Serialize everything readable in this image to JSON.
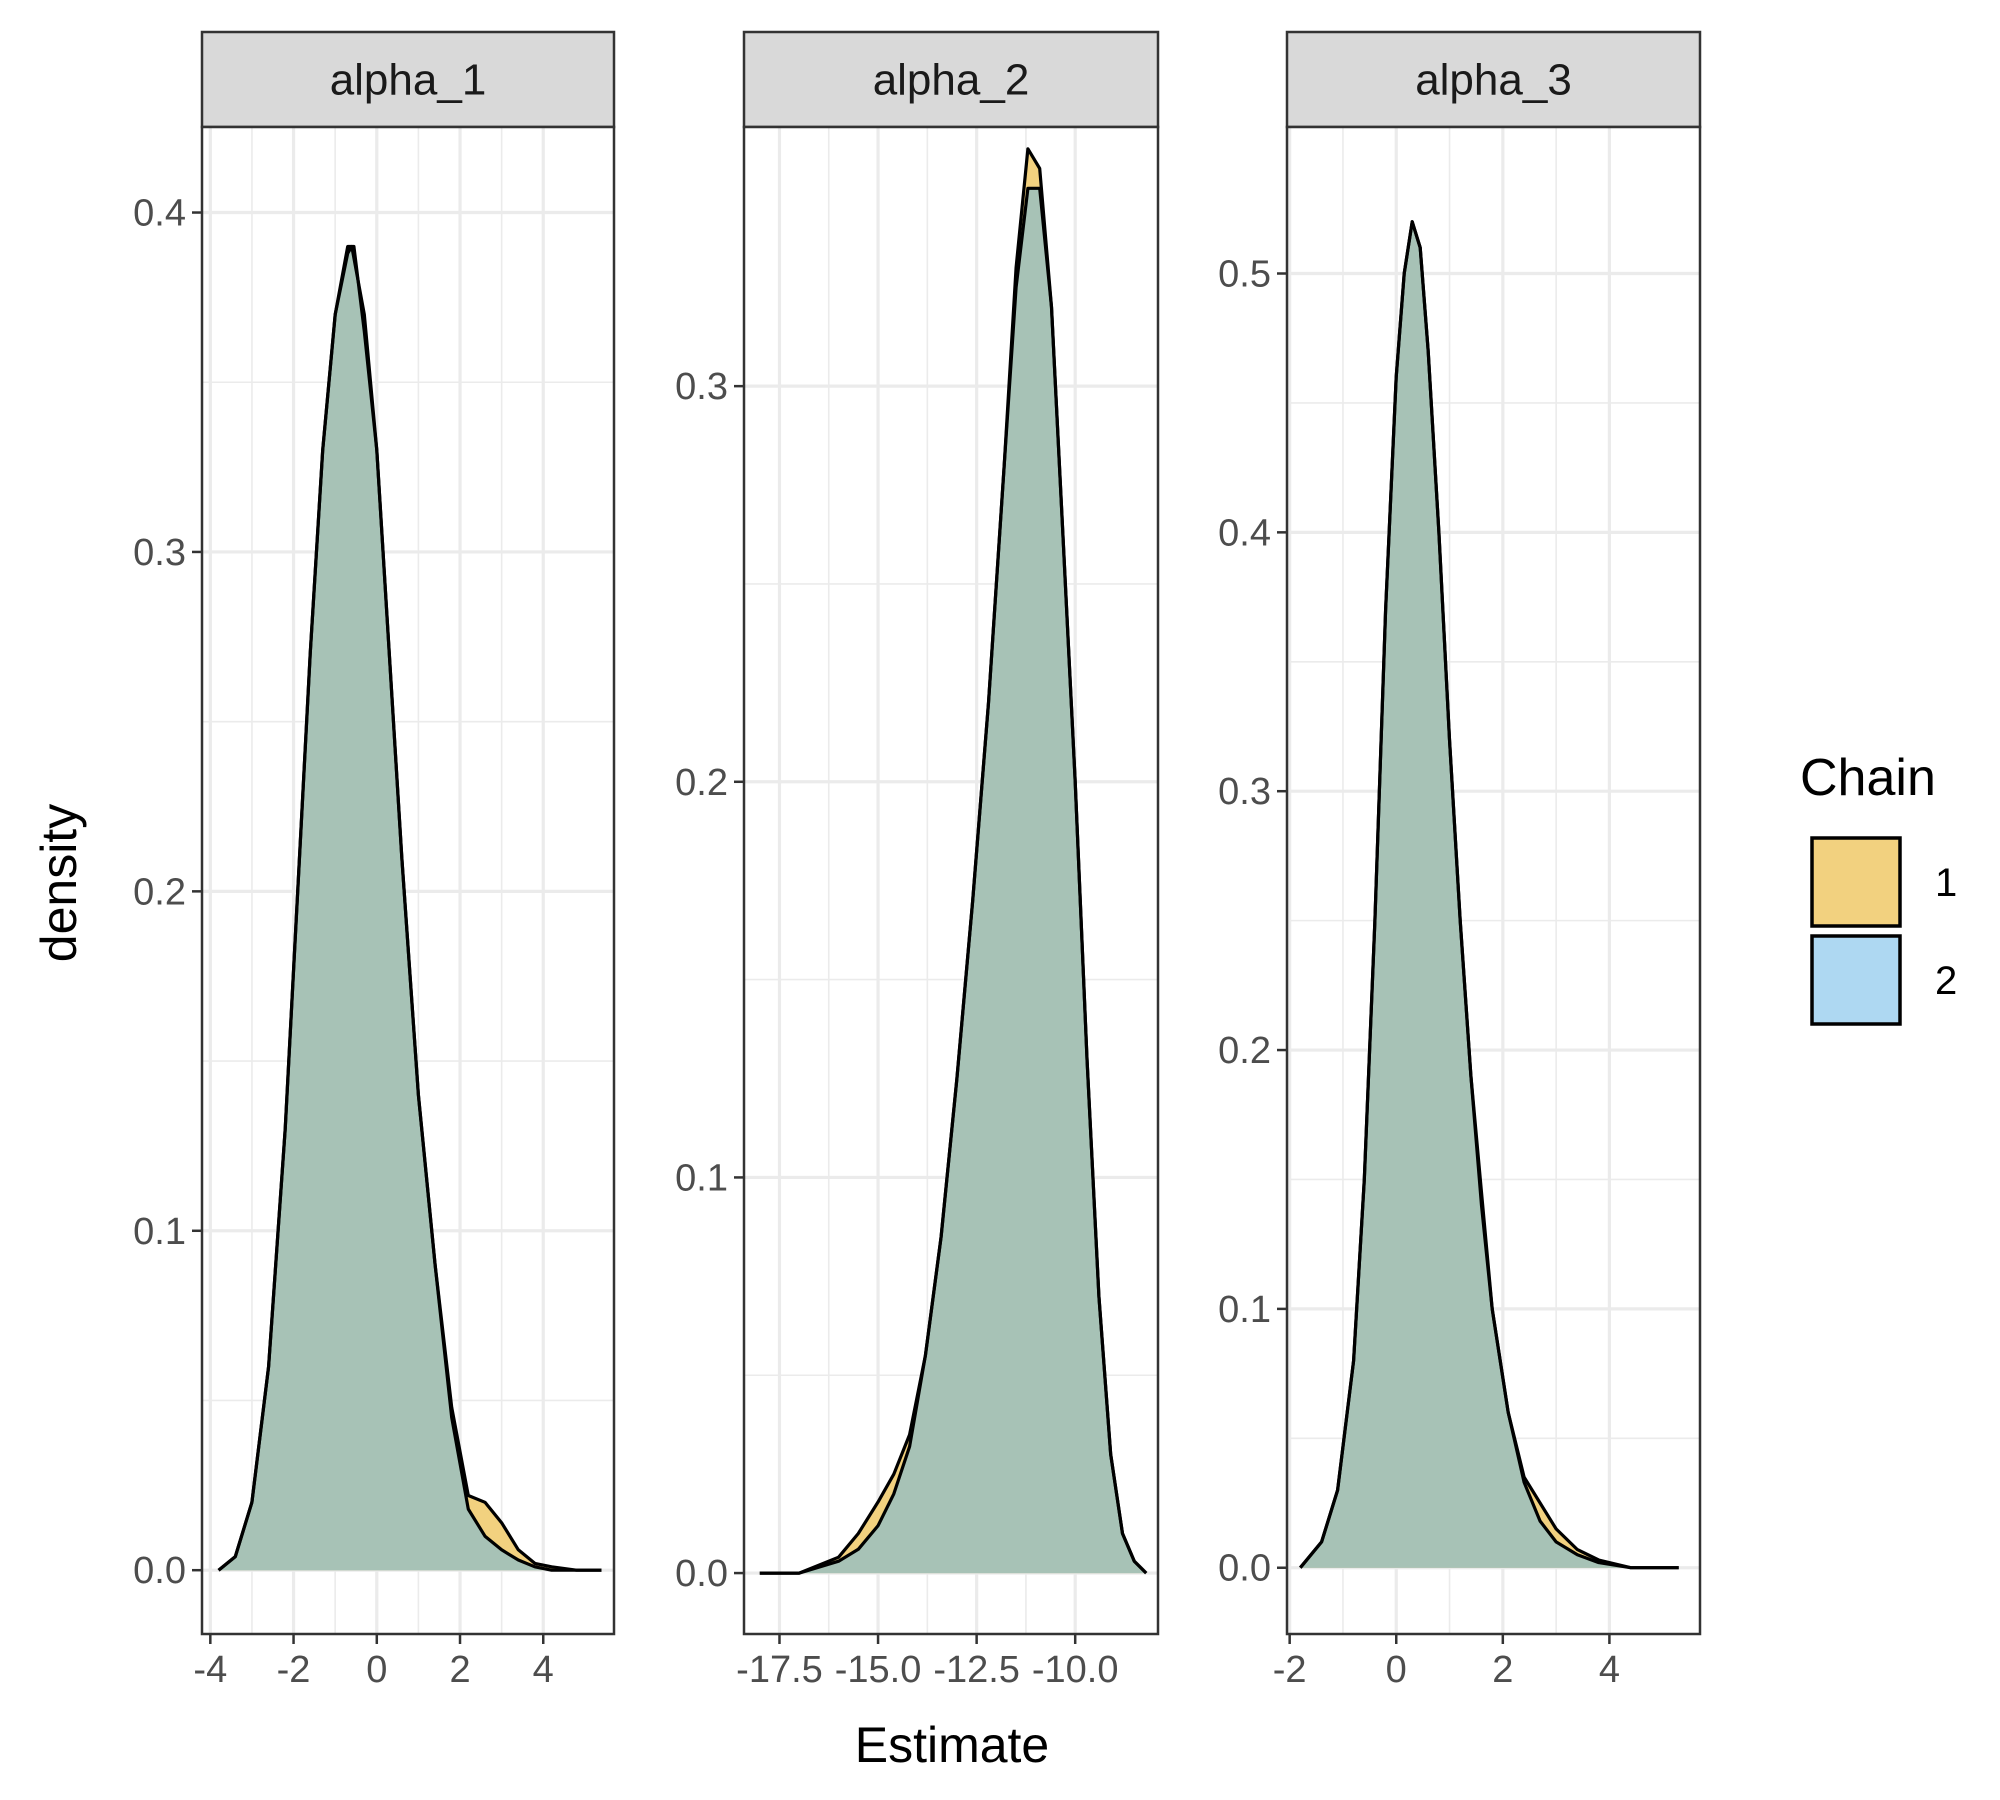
{
  "chart_data": {
    "type": "area",
    "xlabel": "Estimate",
    "ylabel": "density",
    "legend": {
      "title": "Chain",
      "position": "right",
      "entries": [
        {
          "label": "1",
          "color": "#F2D17F"
        },
        {
          "label": "2",
          "color": "#AED8F2"
        }
      ]
    },
    "colors": {
      "overlap_fill": "#A7C2B6",
      "outline": "#000000",
      "grid": "#EBEBEB",
      "strip_bg": "#D9D9D9",
      "panel_border": "#333333"
    },
    "grid": true,
    "panels": [
      {
        "strip": "alpha_1",
        "xlim": [
          -4.2,
          5.7
        ],
        "ylim": [
          -0.0188,
          0.4252
        ],
        "x_ticks": [
          -4,
          -2,
          0,
          2,
          4
        ],
        "x_tick_labels": [
          "-4",
          "-2",
          "0",
          "2",
          "4"
        ],
        "y_ticks": [
          0.0,
          0.1,
          0.2,
          0.3,
          0.4
        ],
        "y_tick_labels": [
          "0.0",
          "0.1",
          "0.2",
          "0.3",
          "0.4"
        ],
        "series": [
          {
            "name": "1",
            "x": [
              -3.8,
              -3.4,
              -3.0,
              -2.6,
              -2.2,
              -1.9,
              -1.6,
              -1.3,
              -1.0,
              -0.7,
              -0.55,
              -0.3,
              0.0,
              0.3,
              0.6,
              1.0,
              1.4,
              1.8,
              2.2,
              2.6,
              3.0,
              3.4,
              3.8,
              4.2,
              4.8,
              5.4
            ],
            "y": [
              0.0,
              0.004,
              0.02,
              0.06,
              0.13,
              0.2,
              0.27,
              0.33,
              0.37,
              0.39,
              0.39,
              0.365,
              0.33,
              0.27,
              0.21,
              0.14,
              0.09,
              0.048,
              0.022,
              0.02,
              0.014,
              0.006,
              0.002,
              0.001,
              0.0,
              0.0
            ]
          },
          {
            "name": "2",
            "x": [
              -3.8,
              -3.4,
              -3.0,
              -2.6,
              -2.2,
              -1.9,
              -1.6,
              -1.3,
              -1.0,
              -0.7,
              -0.6,
              -0.3,
              0.0,
              0.3,
              0.6,
              1.0,
              1.4,
              1.8,
              2.2,
              2.6,
              3.0,
              3.4,
              3.8,
              4.2,
              4.8,
              5.4
            ],
            "y": [
              0.0,
              0.004,
              0.02,
              0.06,
              0.13,
              0.2,
              0.27,
              0.33,
              0.37,
              0.388,
              0.39,
              0.37,
              0.33,
              0.27,
              0.21,
              0.14,
              0.09,
              0.045,
              0.018,
              0.01,
              0.006,
              0.003,
              0.001,
              0.0,
              0.0,
              0.0
            ]
          }
        ]
      },
      {
        "strip": "alpha_2",
        "xlim": [
          -18.4,
          -7.9
        ],
        "ylim": [
          -0.0154,
          0.3655
        ],
        "x_ticks": [
          -17.5,
          -15.0,
          -12.5,
          -10.0
        ],
        "x_tick_labels": [
          "-17.5",
          "-15.0",
          "-12.5",
          "-10.0"
        ],
        "y_ticks": [
          0.0,
          0.1,
          0.2,
          0.3
        ],
        "y_tick_labels": [
          "0.0",
          "0.1",
          "0.2",
          "0.3"
        ],
        "series": [
          {
            "name": "1",
            "x": [
              -18.0,
              -17.0,
              -16.0,
              -15.5,
              -15.0,
              -14.6,
              -14.2,
              -13.8,
              -13.4,
              -13.0,
              -12.6,
              -12.2,
              -11.8,
              -11.5,
              -11.2,
              -10.9,
              -10.6,
              -10.3,
              -10.0,
              -9.7,
              -9.4,
              -9.1,
              -8.8,
              -8.5,
              -8.2
            ],
            "y": [
              0.0,
              0.0,
              0.004,
              0.01,
              0.018,
              0.025,
              0.035,
              0.055,
              0.085,
              0.125,
              0.17,
              0.22,
              0.28,
              0.33,
              0.36,
              0.355,
              0.32,
              0.26,
              0.2,
              0.13,
              0.07,
              0.03,
              0.01,
              0.003,
              0.0
            ]
          },
          {
            "name": "2",
            "x": [
              -18.0,
              -17.0,
              -16.0,
              -15.5,
              -15.0,
              -14.6,
              -14.2,
              -13.8,
              -13.4,
              -13.0,
              -12.6,
              -12.2,
              -11.8,
              -11.5,
              -11.2,
              -10.9,
              -10.6,
              -10.3,
              -10.0,
              -9.7,
              -9.4,
              -9.1,
              -8.8,
              -8.5,
              -8.2
            ],
            "y": [
              0.0,
              0.0,
              0.003,
              0.006,
              0.012,
              0.02,
              0.032,
              0.055,
              0.085,
              0.125,
              0.17,
              0.22,
              0.28,
              0.325,
              0.35,
              0.35,
              0.32,
              0.26,
              0.2,
              0.13,
              0.07,
              0.03,
              0.01,
              0.003,
              0.0
            ]
          }
        ]
      },
      {
        "strip": "alpha_3",
        "xlim": [
          -2.05,
          5.7
        ],
        "ylim": [
          -0.0256,
          0.5566
        ],
        "x_ticks": [
          -2,
          0,
          2,
          4
        ],
        "x_tick_labels": [
          "-2",
          "0",
          "2",
          "4"
        ],
        "y_ticks": [
          0.0,
          0.1,
          0.2,
          0.3,
          0.4,
          0.5
        ],
        "y_tick_labels": [
          "0.0",
          "0.1",
          "0.2",
          "0.3",
          "0.4",
          "0.5"
        ],
        "series": [
          {
            "name": "1",
            "x": [
              -1.8,
              -1.4,
              -1.1,
              -0.8,
              -0.6,
              -0.4,
              -0.2,
              0.0,
              0.15,
              0.3,
              0.45,
              0.6,
              0.8,
              1.0,
              1.2,
              1.4,
              1.6,
              1.8,
              2.1,
              2.4,
              2.7,
              3.0,
              3.4,
              3.8,
              4.4,
              5.3
            ],
            "y": [
              0.0,
              0.01,
              0.03,
              0.08,
              0.15,
              0.25,
              0.37,
              0.46,
              0.5,
              0.52,
              0.51,
              0.47,
              0.4,
              0.32,
              0.25,
              0.19,
              0.14,
              0.1,
              0.06,
              0.035,
              0.025,
              0.015,
              0.007,
              0.003,
              0.0,
              0.0
            ]
          },
          {
            "name": "2",
            "x": [
              -1.8,
              -1.4,
              -1.1,
              -0.8,
              -0.6,
              -0.4,
              -0.2,
              0.0,
              0.15,
              0.3,
              0.45,
              0.6,
              0.8,
              1.0,
              1.2,
              1.4,
              1.6,
              1.8,
              2.1,
              2.4,
              2.7,
              3.0,
              3.4,
              3.8,
              4.4,
              5.3
            ],
            "y": [
              0.0,
              0.01,
              0.03,
              0.08,
              0.15,
              0.25,
              0.37,
              0.46,
              0.5,
              0.52,
              0.51,
              0.47,
              0.4,
              0.32,
              0.25,
              0.19,
              0.145,
              0.1,
              0.06,
              0.033,
              0.018,
              0.01,
              0.005,
              0.002,
              0.0,
              0.0
            ]
          }
        ]
      }
    ]
  }
}
